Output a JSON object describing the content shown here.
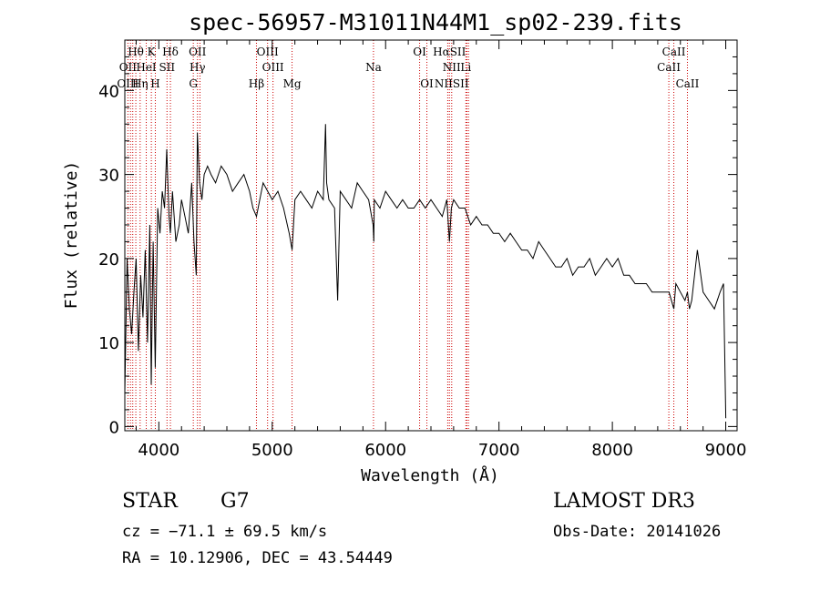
{
  "chart_data": {
    "type": "line",
    "title": "spec-56957-M31011N44M1_sp02-239.fits",
    "xlabel": "Wavelength (Å)",
    "ylabel": "Flux (relative)",
    "xlim": [
      3700,
      9100
    ],
    "ylim": [
      -0.5,
      46
    ],
    "x_ticks": [
      4000,
      5000,
      6000,
      7000,
      8000,
      9000
    ],
    "y_ticks": [
      0,
      10,
      20,
      30,
      40
    ],
    "grid": false,
    "series": [
      {
        "x": [
          3700,
          3720,
          3740,
          3760,
          3780,
          3800,
          3820,
          3840,
          3860,
          3880,
          3900,
          3920,
          3933,
          3950,
          3968,
          3990,
          4010,
          4030,
          4050,
          4070,
          4090,
          4102,
          4120,
          4150,
          4180,
          4200,
          4230,
          4260,
          4290,
          4310,
          4330,
          4340,
          4360,
          4380,
          4400,
          4430,
          4460,
          4500,
          4550,
          4600,
          4650,
          4700,
          4750,
          4800,
          4830,
          4861,
          4890,
          4920,
          4960,
          5000,
          5050,
          5100,
          5150,
          5175,
          5200,
          5250,
          5300,
          5350,
          5400,
          5450,
          5470,
          5480,
          5500,
          5550,
          5577,
          5600,
          5650,
          5700,
          5750,
          5800,
          5850,
          5890,
          5896,
          5900,
          5950,
          6000,
          6050,
          6100,
          6150,
          6200,
          6250,
          6300,
          6350,
          6400,
          6450,
          6500,
          6540,
          6563,
          6580,
          6600,
          6650,
          6700,
          6750,
          6800,
          6850,
          6900,
          6950,
          7000,
          7050,
          7100,
          7150,
          7200,
          7250,
          7300,
          7350,
          7400,
          7450,
          7500,
          7550,
          7600,
          7650,
          7700,
          7750,
          7800,
          7850,
          7900,
          7950,
          8000,
          8050,
          8100,
          8150,
          8200,
          8250,
          8300,
          8350,
          8400,
          8450,
          8500,
          8542,
          8560,
          8600,
          8640,
          8662,
          8680,
          8700,
          8750,
          8800,
          8850,
          8900,
          8950,
          8980,
          9000
        ],
        "y": [
          4,
          20,
          14,
          11,
          16,
          20,
          9,
          18,
          13,
          21,
          10,
          24,
          5,
          22,
          7,
          26,
          23,
          28,
          26,
          33,
          25,
          23,
          28,
          22,
          24,
          27,
          25,
          23,
          29,
          22,
          18,
          35,
          29,
          27,
          30,
          31,
          30,
          29,
          31,
          30,
          28,
          29,
          30,
          28,
          26,
          25,
          27,
          29,
          28,
          27,
          28,
          26,
          23,
          21,
          27,
          28,
          27,
          26,
          28,
          27,
          36,
          29,
          27,
          26,
          15,
          28,
          27,
          26,
          29,
          28,
          27,
          24,
          22,
          27,
          26,
          28,
          27,
          26,
          27,
          26,
          26,
          27,
          26,
          27,
          26,
          25,
          27,
          22,
          26,
          27,
          26,
          26,
          24,
          25,
          24,
          24,
          23,
          23,
          22,
          23,
          22,
          21,
          21,
          20,
          22,
          21,
          20,
          19,
          19,
          20,
          18,
          19,
          19,
          20,
          18,
          19,
          20,
          19,
          20,
          18,
          18,
          17,
          17,
          17,
          16,
          16,
          16,
          16,
          14,
          17,
          16,
          15,
          16,
          14,
          15,
          21,
          16,
          15,
          14,
          16,
          17,
          1
        ]
      }
    ],
    "lines_row1": [
      {
        "label": "Hθ",
        "wl": 3797
      },
      {
        "label": "K",
        "wl": 3934
      },
      {
        "label": "Hδ",
        "wl": 4102
      },
      {
        "label": "OII",
        "wl": 4341
      },
      {
        "label": "OIII",
        "wl": 4959
      },
      {
        "label": "OI",
        "wl": 6300
      },
      {
        "label": "HαSII",
        "wl": 6563
      },
      {
        "label": "CaII",
        "wl": 8542
      }
    ],
    "lines_row2": [
      {
        "label": "OII",
        "wl": 3727
      },
      {
        "label": "HeI",
        "wl": 3889
      },
      {
        "label": "SII",
        "wl": 4072
      },
      {
        "label": "Hγ",
        "wl": 4341
      },
      {
        "label": "OIII",
        "wl": 5007
      },
      {
        "label": "Na",
        "wl": 5893
      },
      {
        "label": "NII",
        "wl": 6583
      },
      {
        "label": "Li",
        "wl": 6708
      },
      {
        "label": "CaII",
        "wl": 8498
      }
    ],
    "lines_row3": [
      {
        "label": "OIII",
        "wl": 3727
      },
      {
        "label": "Hη",
        "wl": 3835
      },
      {
        "label": "H",
        "wl": 3969
      },
      {
        "label": "G",
        "wl": 4304
      },
      {
        "label": "Hβ",
        "wl": 4861
      },
      {
        "label": "Mg",
        "wl": 5175
      },
      {
        "label": "OI",
        "wl": 6364
      },
      {
        "label": "NIISII",
        "wl": 6583
      },
      {
        "label": "CaII",
        "wl": 8662
      }
    ],
    "marker_lines": [
      3727,
      3750,
      3770,
      3797,
      3835,
      3889,
      3934,
      3969,
      4072,
      4102,
      4304,
      4341,
      4363,
      4861,
      4959,
      5007,
      5175,
      5893,
      6300,
      6364,
      6548,
      6563,
      6583,
      6708,
      6716,
      6731,
      8498,
      8542,
      8662
    ]
  },
  "info": {
    "object_class": "STAR",
    "subclass": "G7",
    "survey": "LAMOST DR3",
    "velocity": "cz = −71.1 ± 69.5 km/s",
    "obs_date": "Obs-Date: 20141026",
    "coords": "RA =  10.12906, DEC =  43.54449"
  }
}
